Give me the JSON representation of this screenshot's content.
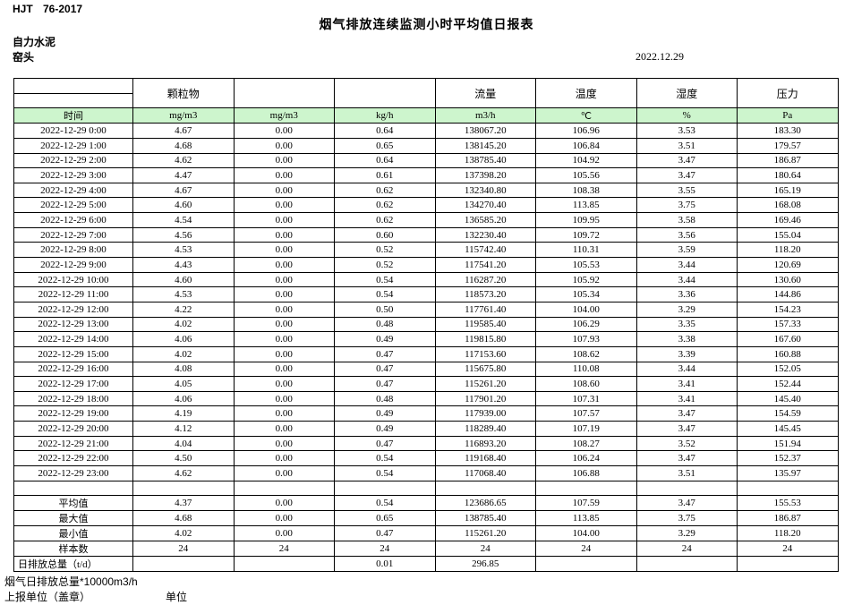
{
  "page": {
    "doc_code": "HJT 76-2017",
    "title": "烟气排放连续监测小时平均值日报表",
    "company": "自力水泥",
    "station": "窑头",
    "date": "2022.12.29"
  },
  "table": {
    "group_headers": {
      "particulate": "颗粒物",
      "flow": "流量",
      "temperature": "温度",
      "humidity": "湿度",
      "pressure": "压力"
    },
    "units": [
      "时间",
      "mg/m3",
      "mg/m3",
      "kg/h",
      "m3/h",
      "℃",
      "%",
      "Pa"
    ],
    "rows": [
      [
        "2022-12-29 0:00",
        "4.67",
        "0.00",
        "0.64",
        "138067.20",
        "106.96",
        "3.53",
        "183.30"
      ],
      [
        "2022-12-29 1:00",
        "4.68",
        "0.00",
        "0.65",
        "138145.20",
        "106.84",
        "3.51",
        "179.57"
      ],
      [
        "2022-12-29 2:00",
        "4.62",
        "0.00",
        "0.64",
        "138785.40",
        "104.92",
        "3.47",
        "186.87"
      ],
      [
        "2022-12-29 3:00",
        "4.47",
        "0.00",
        "0.61",
        "137398.20",
        "105.56",
        "3.47",
        "180.64"
      ],
      [
        "2022-12-29 4:00",
        "4.67",
        "0.00",
        "0.62",
        "132340.80",
        "108.38",
        "3.55",
        "165.19"
      ],
      [
        "2022-12-29 5:00",
        "4.60",
        "0.00",
        "0.62",
        "134270.40",
        "113.85",
        "3.75",
        "168.08"
      ],
      [
        "2022-12-29 6:00",
        "4.54",
        "0.00",
        "0.62",
        "136585.20",
        "109.95",
        "3.58",
        "169.46"
      ],
      [
        "2022-12-29 7:00",
        "4.56",
        "0.00",
        "0.60",
        "132230.40",
        "109.72",
        "3.56",
        "155.04"
      ],
      [
        "2022-12-29 8:00",
        "4.53",
        "0.00",
        "0.52",
        "115742.40",
        "110.31",
        "3.59",
        "118.20"
      ],
      [
        "2022-12-29 9:00",
        "4.43",
        "0.00",
        "0.52",
        "117541.20",
        "105.53",
        "3.44",
        "120.69"
      ],
      [
        "2022-12-29 10:00",
        "4.60",
        "0.00",
        "0.54",
        "116287.20",
        "105.92",
        "3.44",
        "130.60"
      ],
      [
        "2022-12-29 11:00",
        "4.53",
        "0.00",
        "0.54",
        "118573.20",
        "105.34",
        "3.36",
        "144.86"
      ],
      [
        "2022-12-29 12:00",
        "4.22",
        "0.00",
        "0.50",
        "117761.40",
        "104.00",
        "3.29",
        "154.23"
      ],
      [
        "2022-12-29 13:00",
        "4.02",
        "0.00",
        "0.48",
        "119585.40",
        "106.29",
        "3.35",
        "157.33"
      ],
      [
        "2022-12-29 14:00",
        "4.06",
        "0.00",
        "0.49",
        "119815.80",
        "107.93",
        "3.38",
        "167.60"
      ],
      [
        "2022-12-29 15:00",
        "4.02",
        "0.00",
        "0.47",
        "117153.60",
        "108.62",
        "3.39",
        "160.88"
      ],
      [
        "2022-12-29 16:00",
        "4.08",
        "0.00",
        "0.47",
        "115675.80",
        "110.08",
        "3.44",
        "152.05"
      ],
      [
        "2022-12-29 17:00",
        "4.05",
        "0.00",
        "0.47",
        "115261.20",
        "108.60",
        "3.41",
        "152.44"
      ],
      [
        "2022-12-29 18:00",
        "4.06",
        "0.00",
        "0.48",
        "117901.20",
        "107.31",
        "3.41",
        "145.40"
      ],
      [
        "2022-12-29 19:00",
        "4.19",
        "0.00",
        "0.49",
        "117939.00",
        "107.57",
        "3.47",
        "154.59"
      ],
      [
        "2022-12-29 20:00",
        "4.12",
        "0.00",
        "0.49",
        "118289.40",
        "107.19",
        "3.47",
        "145.45"
      ],
      [
        "2022-12-29 21:00",
        "4.04",
        "0.00",
        "0.47",
        "116893.20",
        "108.27",
        "3.52",
        "151.94"
      ],
      [
        "2022-12-29 22:00",
        "4.50",
        "0.00",
        "0.54",
        "119168.40",
        "106.24",
        "3.47",
        "152.37"
      ],
      [
        "2022-12-29 23:00",
        "4.62",
        "0.00",
        "0.54",
        "117068.40",
        "106.88",
        "3.51",
        "135.97"
      ]
    ],
    "spacer_row": [
      "",
      "",
      "",
      "",
      "",
      "",
      "",
      ""
    ],
    "summary_rows": [
      [
        "平均值",
        "4.37",
        "0.00",
        "0.54",
        "123686.65",
        "107.59",
        "3.47",
        "155.53"
      ],
      [
        "最大值",
        "4.68",
        "0.00",
        "0.65",
        "138785.40",
        "113.85",
        "3.75",
        "186.87"
      ],
      [
        "最小值",
        "4.02",
        "0.00",
        "0.47",
        "115261.20",
        "104.00",
        "3.29",
        "118.20"
      ],
      [
        "样本数",
        "24",
        "24",
        "24",
        "24",
        "24",
        "24",
        "24"
      ],
      [
        "日排放总量（t/d）",
        "",
        "",
        "0.01",
        "296.85",
        "",
        "",
        ""
      ]
    ]
  },
  "footer": {
    "note": "烟气日排放总量*10000m3/h",
    "report_unit_label": "上报单位（盖章）",
    "unit_label": "单位"
  },
  "colors": {
    "unit_row_bg": "#cdf5cd",
    "border": "#000000"
  }
}
